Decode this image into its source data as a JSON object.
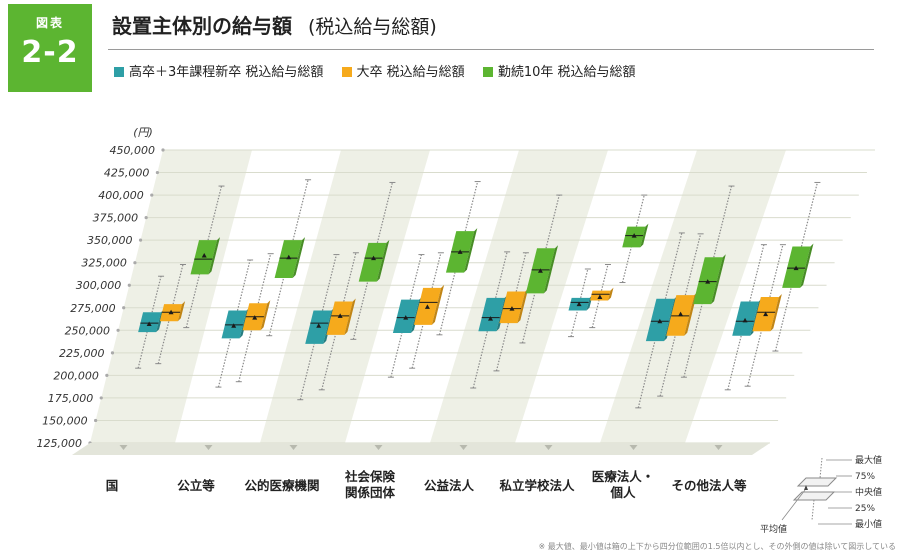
{
  "badge": {
    "label": "図表",
    "number": "2-2"
  },
  "title": {
    "main": "設置主体別の給与額",
    "sub": "(税込給与総額)"
  },
  "legend": [
    {
      "label": "高卒＋3年課程新卒 税込給与総額",
      "color": "#2e9fa6"
    },
    {
      "label": "大卒 税込給与総額",
      "color": "#f6aa1c"
    },
    {
      "label": "勤続10年 税込給与総額",
      "color": "#5cb531"
    }
  ],
  "unit": "(円)",
  "key_labels": {
    "max": "最大値",
    "q3": "75%",
    "median": "中央値",
    "q1": "25%",
    "min": "最小値",
    "mean": "平均値"
  },
  "footnote": "※ 最大値、最小値は箱の上下から四分位範囲の1.5倍以内とし、その外側の値は除いて図示している",
  "chart_data": {
    "type": "boxplot",
    "ylim": [
      125000,
      450000
    ],
    "yticks": [
      "450,000",
      "425,000",
      "400,000",
      "375,000",
      "350,000",
      "325,000",
      "300,000",
      "275,000",
      "250,000",
      "225,000",
      "200,000",
      "175,000",
      "150,000",
      "125,000"
    ],
    "categories": [
      "国",
      "公立等",
      "公的医療機関",
      "社会保険\n関係団体",
      "公益法人",
      "私立学校法人",
      "医療法人・\n個人",
      "その他法人等"
    ],
    "series": [
      {
        "name": "高卒＋3年課程新卒 税込給与総額",
        "color": "#2e9fa6",
        "boxes": [
          {
            "min": 208000,
            "q1": 248000,
            "median": 258000,
            "q3": 270000,
            "max": 310000,
            "mean": 257000
          },
          {
            "min": 187000,
            "q1": 241000,
            "median": 256000,
            "q3": 272000,
            "max": 328000,
            "mean": 255000
          },
          {
            "min": 173000,
            "q1": 235000,
            "median": 258000,
            "q3": 272000,
            "max": 334000,
            "mean": 255000
          },
          {
            "min": 198000,
            "q1": 247000,
            "median": 264000,
            "q3": 284000,
            "max": 334000,
            "mean": 264000
          },
          {
            "min": 186000,
            "q1": 249000,
            "median": 264000,
            "q3": 286000,
            "max": 337000,
            "mean": 263000
          },
          {
            "min": 243000,
            "q1": 272000,
            "median": 281000,
            "q3": 286000,
            "max": 318000,
            "mean": 279000
          },
          {
            "min": 164000,
            "q1": 238000,
            "median": 260000,
            "q3": 285000,
            "max": 358000,
            "mean": 260000
          },
          {
            "min": 184000,
            "q1": 244000,
            "median": 260000,
            "q3": 282000,
            "max": 345000,
            "mean": 261000
          }
        ]
      },
      {
        "name": "大卒 税込給与総額",
        "color": "#f6aa1c",
        "boxes": [
          {
            "min": 213000,
            "q1": 260000,
            "median": 270000,
            "q3": 279000,
            "max": 323000,
            "mean": 270000
          },
          {
            "min": 193000,
            "q1": 250000,
            "median": 265000,
            "q3": 280000,
            "max": 335000,
            "mean": 264000
          },
          {
            "min": 184000,
            "q1": 245000,
            "median": 266000,
            "q3": 282000,
            "max": 336000,
            "mean": 266000
          },
          {
            "min": 208000,
            "q1": 256000,
            "median": 281000,
            "q3": 297000,
            "max": 336000,
            "mean": 276000
          },
          {
            "min": 205000,
            "q1": 258000,
            "median": 274000,
            "q3": 293000,
            "max": 336000,
            "mean": 274000
          },
          {
            "min": 253000,
            "q1": 283000,
            "median": 290000,
            "q3": 294000,
            "max": 323000,
            "mean": 287000
          },
          {
            "min": 177000,
            "q1": 244000,
            "median": 266000,
            "q3": 289000,
            "max": 357000,
            "mean": 268000
          },
          {
            "min": 188000,
            "q1": 249000,
            "median": 270000,
            "q3": 287000,
            "max": 345000,
            "mean": 268000
          }
        ]
      },
      {
        "name": "勤続10年 税込給与総額",
        "color": "#5cb531",
        "boxes": [
          {
            "min": 253000,
            "q1": 312000,
            "median": 329000,
            "q3": 350000,
            "max": 410000,
            "mean": 333000
          },
          {
            "min": 244000,
            "q1": 308000,
            "median": 330000,
            "q3": 350000,
            "max": 417000,
            "mean": 331000
          },
          {
            "min": 240000,
            "q1": 304000,
            "median": 330000,
            "q3": 347000,
            "max": 414000,
            "mean": 330000
          },
          {
            "min": 245000,
            "q1": 314000,
            "median": 337000,
            "q3": 360000,
            "max": 415000,
            "mean": 337000
          },
          {
            "min": 236000,
            "q1": 291000,
            "median": 317000,
            "q3": 341000,
            "max": 400000,
            "mean": 316000
          },
          {
            "min": 303000,
            "q1": 342000,
            "median": 355000,
            "q3": 365000,
            "max": 400000,
            "mean": 355000
          },
          {
            "min": 198000,
            "q1": 279000,
            "median": 304000,
            "q3": 331000,
            "max": 410000,
            "mean": 304000
          },
          {
            "min": 227000,
            "q1": 297000,
            "median": 319000,
            "q3": 343000,
            "max": 414000,
            "mean": 319000
          }
        ]
      }
    ]
  }
}
